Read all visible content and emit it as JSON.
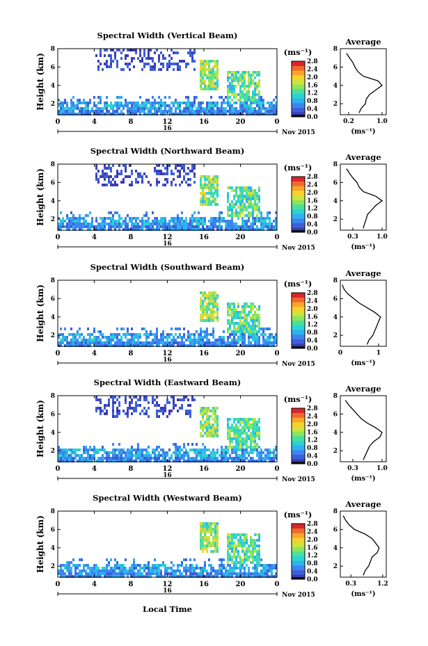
{
  "figure": {
    "xlabel": "Local Time",
    "date_label": "Nov 2015",
    "day_label": "16",
    "colorbar_unit": "(ms⁻¹)",
    "avg_xlabel": "(ms⁻¹)"
  },
  "colorscale": [
    "#3b3bb5",
    "#3e5fd9",
    "#3c85ef",
    "#2fb2ee",
    "#2ed3d0",
    "#48e0a0",
    "#8ee45b",
    "#cde33d",
    "#f5d12e",
    "#f7a628",
    "#f2682b",
    "#d9262a"
  ],
  "chart_data": [
    {
      "type": "heatmap",
      "title": "Spectral Width (Vertical Beam)",
      "xlabel": "",
      "ylabel": "Height (km)",
      "xlim": [
        0,
        24
      ],
      "ylim": [
        0.8,
        8
      ],
      "x_ticks": [
        "0",
        "4",
        "8",
        "12",
        "16",
        "20",
        "0"
      ],
      "y_ticks": [
        "2",
        "4",
        "6",
        "8"
      ],
      "colorbar_ticks": [
        "0.0",
        "0.4",
        "0.8",
        "1.2",
        "1.6",
        "2.0",
        "2.4",
        "2.8"
      ],
      "avg": {
        "title": "Average",
        "xlim": [
          0,
          1.1
        ],
        "ylim": [
          0.8,
          8
        ],
        "x_ticks": [
          "0.2",
          "1.0"
        ],
        "x_tick_values": [
          0.2,
          1.0
        ],
        "y_ticks": [
          "2",
          "4",
          "6",
          "8"
        ],
        "height": [
          1.0,
          1.5,
          2.0,
          2.5,
          3.0,
          3.5,
          4.0,
          4.5,
          5.0,
          5.5,
          6.0,
          6.5,
          7.0,
          7.5
        ],
        "width": [
          0.45,
          0.5,
          0.6,
          0.62,
          0.7,
          0.85,
          1.0,
          0.9,
          0.55,
          0.42,
          0.35,
          0.3,
          0.22,
          0.15
        ]
      }
    },
    {
      "type": "heatmap",
      "title": "Spectral Width (Northward Beam)",
      "xlabel": "",
      "ylabel": "Height (km)",
      "xlim": [
        0,
        24
      ],
      "ylim": [
        0.8,
        8
      ],
      "x_ticks": [
        "0",
        "4",
        "8",
        "12",
        "16",
        "20",
        "0"
      ],
      "y_ticks": [
        "2",
        "4",
        "6",
        "8"
      ],
      "colorbar_ticks": [
        "0.0",
        "0.4",
        "0.8",
        "1.2",
        "1.6",
        "2.0",
        "2.4",
        "2.8"
      ],
      "avg": {
        "title": "Average",
        "xlim": [
          0,
          1.1
        ],
        "ylim": [
          0.8,
          8
        ],
        "x_ticks": [
          "0.3",
          "1.0"
        ],
        "x_tick_values": [
          0.3,
          1.0
        ],
        "y_ticks": [
          "2",
          "4",
          "6",
          "8"
        ],
        "height": [
          1.0,
          1.5,
          2.0,
          2.5,
          3.0,
          3.5,
          4.0,
          4.5,
          5.0,
          5.5,
          6.0,
          6.5,
          7.0,
          7.5
        ],
        "width": [
          0.55,
          0.58,
          0.62,
          0.65,
          0.75,
          0.85,
          1.0,
          0.85,
          0.55,
          0.45,
          0.4,
          0.3,
          0.22,
          0.15
        ]
      }
    },
    {
      "type": "heatmap",
      "title": "Spectral Width (Southward Beam)",
      "xlabel": "",
      "ylabel": "Height (km)",
      "xlim": [
        0,
        24
      ],
      "ylim": [
        0.8,
        8
      ],
      "x_ticks": [
        "0",
        "4",
        "8",
        "12",
        "16",
        "20",
        "0"
      ],
      "y_ticks": [
        "2",
        "4",
        "6",
        "8"
      ],
      "colorbar_ticks": [
        "0.0",
        "0.4",
        "0.8",
        "1.2",
        "1.6",
        "2.0",
        "2.4",
        "2.8"
      ],
      "avg": {
        "title": "Average",
        "xlim": [
          0,
          1.2
        ],
        "ylim": [
          0.8,
          8
        ],
        "x_ticks": [
          "0",
          "1"
        ],
        "x_tick_values": [
          0,
          1
        ],
        "y_ticks": [
          "2",
          "4",
          "6",
          "8"
        ],
        "height": [
          1.0,
          1.5,
          2.0,
          2.5,
          3.0,
          3.5,
          4.0,
          4.5,
          5.0,
          5.5,
          6.0,
          6.5,
          7.0,
          7.5
        ],
        "width": [
          0.7,
          0.75,
          0.85,
          0.9,
          0.95,
          1.0,
          1.05,
          0.9,
          0.7,
          0.5,
          0.35,
          0.2,
          0.1,
          0.05
        ]
      }
    },
    {
      "type": "heatmap",
      "title": "Spectral Width (Eastward Beam)",
      "xlabel": "",
      "ylabel": "Height (km)",
      "xlim": [
        0,
        24
      ],
      "ylim": [
        0.8,
        8
      ],
      "x_ticks": [
        "0",
        "4",
        "8",
        "12",
        "16",
        "20",
        "0"
      ],
      "y_ticks": [
        "2",
        "4",
        "6",
        "8"
      ],
      "colorbar_ticks": [
        "0.0",
        "0.4",
        "0.8",
        "1.2",
        "1.6",
        "2.0",
        "2.4",
        "2.8"
      ],
      "avg": {
        "title": "Average",
        "xlim": [
          0,
          1.1
        ],
        "ylim": [
          0.8,
          8
        ],
        "x_ticks": [
          "0.3",
          "1.0"
        ],
        "x_tick_values": [
          0.3,
          1.0
        ],
        "y_ticks": [
          "2",
          "4",
          "6",
          "8"
        ],
        "height": [
          1.0,
          1.5,
          2.0,
          2.5,
          3.0,
          3.5,
          4.0,
          4.5,
          5.0,
          5.5,
          6.0,
          6.5,
          7.0,
          7.5
        ],
        "width": [
          0.55,
          0.6,
          0.65,
          0.7,
          0.8,
          0.95,
          1.0,
          0.85,
          0.65,
          0.5,
          0.4,
          0.3,
          0.2,
          0.12
        ]
      }
    },
    {
      "type": "heatmap",
      "title": "Spectral Width (Westward Beam)",
      "xlabel": "Local Time",
      "ylabel": "Height (km)",
      "xlim": [
        0,
        24
      ],
      "ylim": [
        0.8,
        8
      ],
      "x_ticks": [
        "0",
        "4",
        "8",
        "12",
        "16",
        "20",
        "0"
      ],
      "y_ticks": [
        "2",
        "4",
        "6",
        "8"
      ],
      "colorbar_ticks": [
        "0.0",
        "0.4",
        "0.8",
        "1.2",
        "1.6",
        "2.0",
        "2.4",
        "2.8"
      ],
      "avg": {
        "title": "Average",
        "xlim": [
          0,
          1.3
        ],
        "ylim": [
          0.8,
          8
        ],
        "x_ticks": [
          "0.3",
          "1.2"
        ],
        "x_tick_values": [
          0.3,
          1.2
        ],
        "y_ticks": [
          "2",
          "4",
          "6",
          "8"
        ],
        "height": [
          1.0,
          1.5,
          2.0,
          2.5,
          3.0,
          3.5,
          4.0,
          4.5,
          5.0,
          5.5,
          6.0,
          6.5,
          7.0,
          7.5
        ],
        "width": [
          0.65,
          0.7,
          0.8,
          0.85,
          0.9,
          1.05,
          1.1,
          1.0,
          0.9,
          0.7,
          0.4,
          0.25,
          0.15,
          0.08
        ]
      }
    }
  ]
}
